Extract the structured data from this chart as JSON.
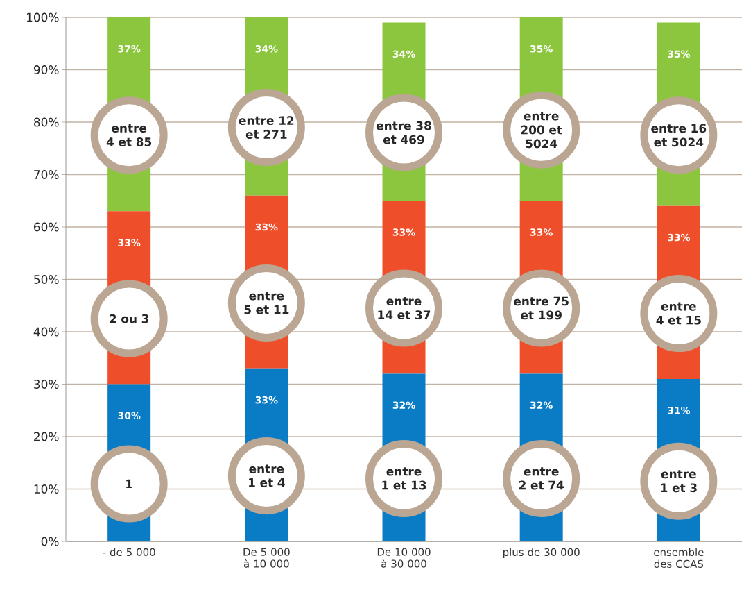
{
  "chart_data": {
    "type": "bar",
    "stacked": true,
    "categories": [
      "- de 5 000",
      "De 5 000 à 10 000",
      "De 10 000 à 30 000",
      "plus de 30 000",
      "ensemble des CCAS"
    ],
    "series": [
      {
        "color": "#0a7cc6",
        "values": [
          30,
          33,
          32,
          32,
          31
        ],
        "value_labels": [
          "30%",
          "33%",
          "32%",
          "32%",
          "31%"
        ]
      },
      {
        "color": "#ee4e2a",
        "values": [
          33,
          33,
          33,
          33,
          33
        ],
        "value_labels": [
          "33%",
          "33%",
          "33%",
          "33%",
          "33%"
        ]
      },
      {
        "color": "#8cc63f",
        "values": [
          37,
          34,
          34,
          35,
          35
        ],
        "value_labels": [
          "37%",
          "34%",
          "34%",
          "35%",
          "35%"
        ]
      }
    ],
    "ylim": [
      0,
      100
    ],
    "yticks": [
      {
        "value": 0,
        "label": "0%"
      },
      {
        "value": 10,
        "label": "10%"
      },
      {
        "value": 20,
        "label": "20%"
      },
      {
        "value": 30,
        "label": "30%"
      },
      {
        "value": 40,
        "label": "40%"
      },
      {
        "value": 50,
        "label": "50%"
      },
      {
        "value": 60,
        "label": "60%"
      },
      {
        "value": 70,
        "label": "70%"
      },
      {
        "value": 80,
        "label": "80%"
      },
      {
        "value": 90,
        "label": "90%"
      },
      {
        "value": 100,
        "label": "100%"
      }
    ],
    "grid": "y",
    "annotations": [
      "1",
      "2 ou 3",
      "entre 4 et 85",
      "entre 1 et 4",
      "entre 5 et 11",
      "entre 12 et 271",
      "entre 1 et 13",
      "entre 14 et 37",
      "entre 38 et 469",
      "entre 2 et 74",
      "entre 75 et 199",
      "entre 200 et 5024",
      "entre 1 et 3",
      "entre 4 et 15",
      "entre 16 et 5024"
    ]
  }
}
